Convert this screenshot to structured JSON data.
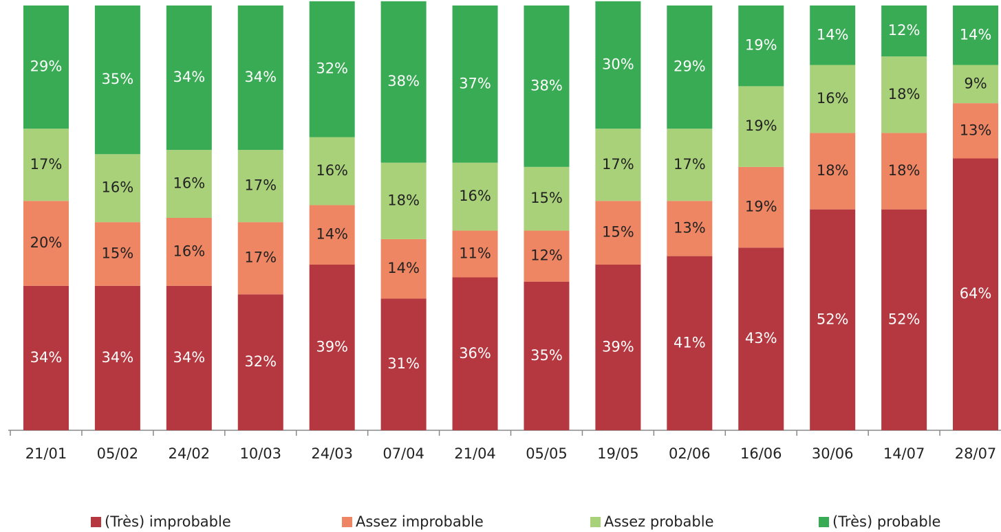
{
  "chart_data": {
    "type": "stacked_bar",
    "categories": [
      "21/01",
      "05/02",
      "24/02",
      "10/03",
      "24/03",
      "07/04",
      "21/04",
      "05/05",
      "19/05",
      "02/06",
      "16/06",
      "30/06",
      "14/07",
      "28/07"
    ],
    "series": [
      {
        "name": "(Très) improbable",
        "color": "#b5373f",
        "values": [
          34,
          34,
          34,
          32,
          39,
          31,
          36,
          35,
          39,
          41,
          43,
          52,
          52,
          64
        ],
        "value_labels": [
          "34%",
          "34%",
          "34%",
          "32%",
          "39%",
          "31%",
          "36%",
          "35%",
          "39%",
          "41%",
          "43%",
          "52%",
          "52%",
          "64%"
        ]
      },
      {
        "name": "Assez improbable",
        "color": "#ee8563",
        "values": [
          20,
          15,
          16,
          17,
          14,
          14,
          11,
          12,
          15,
          13,
          19,
          18,
          18,
          13
        ],
        "value_labels": [
          "20%",
          "15%",
          "16%",
          "17%",
          "14%",
          "14%",
          "11%",
          "12%",
          "15%",
          "13%",
          "19%",
          "18%",
          "18%",
          "13%"
        ]
      },
      {
        "name": "Assez probable",
        "color": "#a9d17a",
        "values": [
          17,
          16,
          16,
          17,
          16,
          18,
          16,
          15,
          17,
          17,
          19,
          16,
          18,
          9
        ],
        "value_labels": [
          "17%",
          "16%",
          "16%",
          "17%",
          "16%",
          "18%",
          "16%",
          "15%",
          "17%",
          "17%",
          "19%",
          "16%",
          "18%",
          "9%"
        ]
      },
      {
        "name": "(Très) probable",
        "color": "#3aab55",
        "values": [
          29,
          35,
          34,
          34,
          32,
          38,
          37,
          38,
          30,
          29,
          19,
          14,
          12,
          14
        ],
        "value_labels": [
          "29%",
          "35%",
          "34%",
          "34%",
          "32%",
          "38%",
          "37%",
          "38%",
          "30%",
          "29%",
          "19%",
          "14%",
          "12%",
          "14%"
        ]
      }
    ],
    "ylim": [
      0,
      100
    ],
    "legend": "bottom"
  }
}
